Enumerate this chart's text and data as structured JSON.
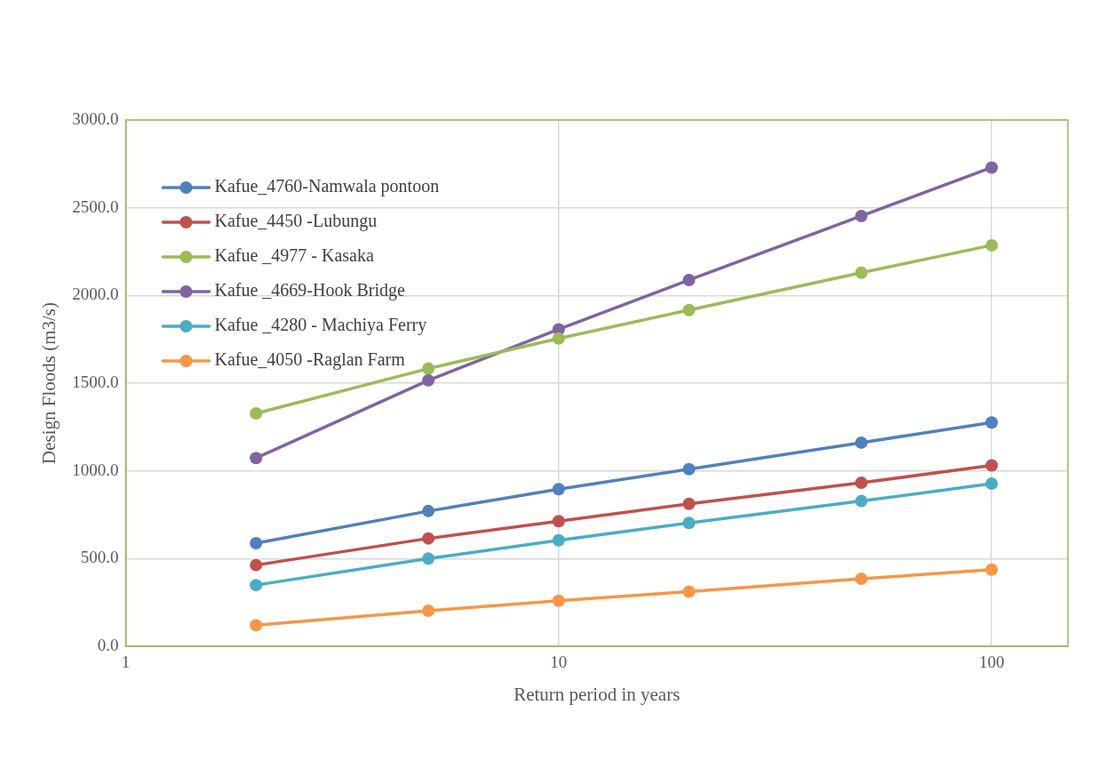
{
  "chart_data": {
    "type": "line",
    "xlabel": "Return period in years",
    "ylabel": "Design Floods (m3/s)",
    "x": [
      2,
      5,
      10,
      20,
      50,
      100
    ],
    "series": [
      {
        "name": "Kafue_4760-Namwala pontoon",
        "color": "#4f81bd",
        "values": [
          588,
          771,
          896,
          1010,
          1161,
          1276
        ]
      },
      {
        "name": "Kafue_4450 -Lubungu",
        "color": "#c0504d",
        "values": [
          463,
          615,
          713,
          812,
          932,
          1031
        ]
      },
      {
        "name": "Kafue _4977 - Kasaka",
        "color": "#9bbb59",
        "values": [
          1328,
          1583,
          1755,
          1917,
          2130,
          2286
        ]
      },
      {
        "name": "Kafue _4669-Hook Bridge",
        "color": "#8064a2",
        "values": [
          1073,
          1516,
          1807,
          2088,
          2453,
          2729
        ]
      },
      {
        "name": "Kafue _4280 - Machiya Ferry",
        "color": "#4bacc6",
        "values": [
          349,
          500,
          604,
          703,
          828,
          927
        ]
      },
      {
        "name": "Kafue_4050 -Raglan Farm",
        "color": "#f79646",
        "values": [
          120,
          203,
          260,
          312,
          385,
          437
        ]
      }
    ],
    "log": "x",
    "xlim": [
      1,
      150
    ],
    "xticks": [
      1,
      10,
      100
    ],
    "ylim": [
      0,
      3000
    ],
    "yticks": [
      {
        "value": 0,
        "label": "0.0"
      },
      {
        "value": 500,
        "label": "500.0"
      },
      {
        "value": 1000,
        "label": "1000.0"
      },
      {
        "value": 1500,
        "label": "1500.0"
      },
      {
        "value": 2000,
        "label": "2000.0"
      },
      {
        "value": 2500,
        "label": "2500.0"
      },
      {
        "value": 3000,
        "label": "3000.0"
      }
    ],
    "grid": true,
    "legend": "top left",
    "marker": "circle",
    "line_style": "solid"
  }
}
